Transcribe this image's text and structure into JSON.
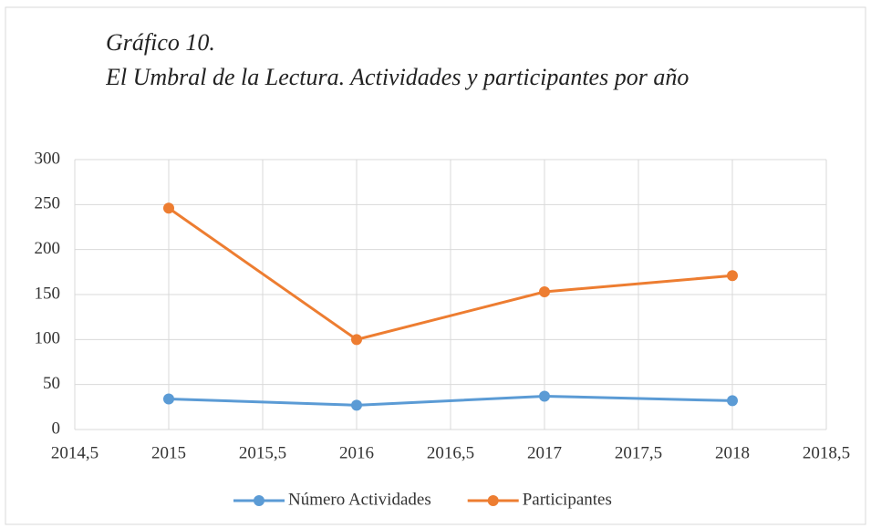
{
  "chart_data": {
    "type": "line",
    "title": "Gráfico 10.",
    "subtitle": "El Umbral de la Lectura. Actividades y participantes por año",
    "x": [
      2015,
      2016,
      2017,
      2018
    ],
    "series": [
      {
        "name": "Número Actividades",
        "color": "#5b9bd5",
        "values": [
          34,
          27,
          37,
          32
        ]
      },
      {
        "name": "Participantes",
        "color": "#ed7d31",
        "values": [
          246,
          100,
          153,
          171
        ]
      }
    ],
    "xlim": [
      2014.5,
      2018.5
    ],
    "xticks": [
      {
        "value": 2014.5,
        "label": "2014,5"
      },
      2015,
      {
        "value": 2015.5,
        "label": "2015,5"
      },
      2016,
      {
        "value": 2016.5,
        "label": "2016,5"
      },
      2017,
      {
        "value": 2017.5,
        "label": "2017,5"
      },
      2018,
      {
        "value": 2018.5,
        "label": "2018,5"
      }
    ],
    "ylim": [
      0,
      300
    ],
    "yticks": [
      0,
      50,
      100,
      150,
      200,
      250,
      300
    ],
    "grid": true,
    "legend": "bottom"
  }
}
